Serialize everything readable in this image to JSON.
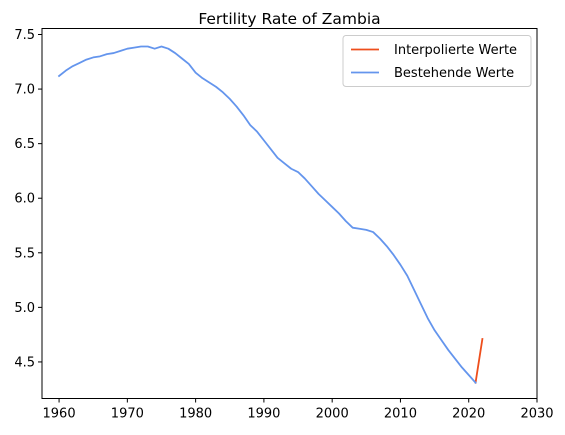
{
  "chart_data": {
    "type": "line",
    "title": "Fertility Rate of Zambia",
    "xlabel": "",
    "ylabel": "",
    "xlim": [
      1957.5,
      2030
    ],
    "ylim": [
      4.165,
      7.555
    ],
    "x_ticks": [
      1960,
      1970,
      1980,
      1990,
      2000,
      2010,
      2020,
      2030
    ],
    "y_ticks": [
      4.5,
      5.0,
      5.5,
      6.0,
      6.5,
      7.0,
      7.5
    ],
    "grid": false,
    "legend_position": "top-right",
    "series": [
      {
        "name": "Interpolierte Werte",
        "color": "#ee4e1c",
        "x": [
          2021,
          2022
        ],
        "y": [
          4.31,
          4.71
        ]
      },
      {
        "name": "Bestehende Werte",
        "color": "#6495ed",
        "x": [
          1960,
          1961,
          1962,
          1963,
          1964,
          1965,
          1966,
          1967,
          1968,
          1969,
          1970,
          1971,
          1972,
          1973,
          1974,
          1975,
          1976,
          1977,
          1978,
          1979,
          1980,
          1981,
          1982,
          1983,
          1984,
          1985,
          1986,
          1987,
          1988,
          1989,
          1990,
          1991,
          1992,
          1993,
          1994,
          1995,
          1996,
          1997,
          1998,
          1999,
          2000,
          2001,
          2002,
          2003,
          2004,
          2005,
          2006,
          2007,
          2008,
          2009,
          2010,
          2011,
          2012,
          2013,
          2014,
          2015,
          2016,
          2017,
          2018,
          2019,
          2020,
          2021
        ],
        "y": [
          7.12,
          7.17,
          7.21,
          7.24,
          7.27,
          7.29,
          7.3,
          7.32,
          7.33,
          7.35,
          7.37,
          7.38,
          7.39,
          7.39,
          7.37,
          7.39,
          7.37,
          7.33,
          7.28,
          7.23,
          7.15,
          7.1,
          7.06,
          7.02,
          6.97,
          6.91,
          6.84,
          6.76,
          6.67,
          6.61,
          6.53,
          6.45,
          6.37,
          6.32,
          6.27,
          6.24,
          6.18,
          6.11,
          6.04,
          5.98,
          5.92,
          5.86,
          5.79,
          5.73,
          5.72,
          5.71,
          5.69,
          5.63,
          5.56,
          5.48,
          5.39,
          5.29,
          5.16,
          5.03,
          4.9,
          4.79,
          4.7,
          4.61,
          4.53,
          4.45,
          4.38,
          4.31
        ]
      }
    ]
  }
}
